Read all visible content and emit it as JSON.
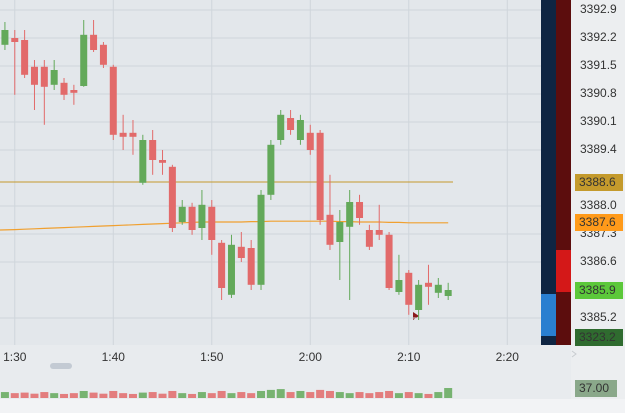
{
  "chart_data": {
    "type": "candlestick",
    "categories": [
      null,
      "1:30",
      null,
      null,
      null,
      null,
      null,
      null,
      null,
      null,
      null,
      "1:40",
      null,
      null,
      null,
      null,
      null,
      null,
      null,
      null,
      null,
      "1:50",
      null,
      null,
      null,
      null,
      null,
      null,
      null,
      null,
      null,
      "2:00",
      null,
      null,
      null,
      null,
      null,
      null,
      null,
      null,
      null,
      "2:10",
      null,
      null,
      null,
      null,
      null,
      null,
      null,
      null,
      null,
      "2:20"
    ],
    "open": [
      3392.03,
      3392.2,
      3392.15,
      3391.48,
      3391.48,
      3391.03,
      3391.08,
      3390.9,
      3391.0,
      3392.28,
      3392.03,
      3391.48,
      3389.83,
      3389.83,
      3388.58,
      3389.65,
      3389.15,
      3388.98,
      3387.6,
      3387.98,
      3387.45,
      3387.98,
      3387.08,
      3385.78,
      3386.98,
      3386.95,
      3386.03,
      3388.28,
      3389.65,
      3390.2,
      3389.65,
      3389.83,
      3389.83,
      3387.78,
      3387.1,
      3387.48,
      3388.1,
      3387.4,
      3387.4,
      3387.28,
      3385.85,
      3386.33,
      3385.4,
      3386.08,
      3385.83,
      3385.75,
      null,
      null,
      null,
      null,
      null,
      null
    ],
    "high": [
      3392.6,
      3392.4,
      3392.4,
      3391.65,
      3391.65,
      3391.65,
      3391.2,
      3391.03,
      3392.65,
      3392.65,
      3392.1,
      3391.53,
      3390.28,
      3390.15,
      3389.78,
      3389.9,
      3389.4,
      3389.03,
      3388.15,
      3388.08,
      3388.4,
      3388.15,
      3387.15,
      3387.28,
      3387.35,
      3387.15,
      3388.4,
      3389.65,
      3390.4,
      3390.4,
      3390.28,
      3390.03,
      3389.9,
      3388.78,
      3387.9,
      3388.4,
      3388.28,
      3387.53,
      3388.03,
      3387.35,
      3386.78,
      3386.4,
      3386.15,
      3386.53,
      3386.2,
      3386.08,
      null,
      null,
      null,
      null,
      null,
      null
    ],
    "low": [
      3391.9,
      3390.78,
      3391.2,
      3390.4,
      3390.03,
      3390.9,
      3390.65,
      3390.53,
      3390.98,
      3391.85,
      3391.45,
      3389.65,
      3389.4,
      3389.28,
      3388.53,
      3388.78,
      3388.78,
      3387.35,
      3387.53,
      3387.28,
      3387.15,
      3386.78,
      3385.65,
      3385.7,
      3386.6,
      3385.9,
      3385.9,
      3388.15,
      3389.53,
      3389.78,
      3389.53,
      3389.28,
      3387.53,
      3386.9,
      3386.15,
      3385.65,
      3387.53,
      3386.9,
      3387.15,
      3385.9,
      3385.78,
      3385.28,
      3385.15,
      3385.53,
      3385.7,
      3385.65,
      null,
      null,
      null,
      null,
      null,
      null
    ],
    "close": [
      3392.4,
      3392.1,
      3391.28,
      3391.03,
      3390.98,
      3391.4,
      3390.78,
      3390.83,
      3392.28,
      3391.9,
      3391.53,
      3389.78,
      3389.73,
      3389.73,
      3389.65,
      3389.15,
      3389.08,
      3387.45,
      3387.98,
      3387.4,
      3388.03,
      3387.15,
      3385.95,
      3387.03,
      3386.7,
      3386.03,
      3388.28,
      3389.53,
      3390.28,
      3389.9,
      3390.15,
      3389.4,
      3387.65,
      3387.03,
      3387.6,
      3388.1,
      3387.7,
      3386.98,
      3387.28,
      3385.95,
      3386.15,
      3385.53,
      3386.03,
      3385.98,
      3386.03,
      3385.9,
      null,
      null,
      null,
      null,
      null,
      null
    ],
    "moving_average": [
      3387.4,
      3387.41,
      3387.42,
      3387.43,
      3387.44,
      3387.45,
      3387.46,
      3387.47,
      3387.48,
      3387.49,
      3387.5,
      3387.51,
      3387.52,
      3387.53,
      3387.54,
      3387.55,
      3387.56,
      3387.57,
      3387.58,
      3387.59,
      3387.6,
      3387.6,
      3387.6,
      3387.6,
      3387.6,
      3387.61,
      3387.61,
      3387.62,
      3387.62,
      3387.62,
      3387.62,
      3387.62,
      3387.62,
      3387.62,
      3387.61,
      3387.61,
      3387.6,
      3387.6,
      3387.6,
      3387.59,
      3387.59,
      3387.58,
      3387.58,
      3387.58,
      3387.58,
      3387.58,
      null,
      null,
      null,
      null,
      null,
      null
    ],
    "volume": [
      22,
      18,
      20,
      16,
      22,
      18,
      15,
      18,
      26,
      20,
      16,
      26,
      18,
      15,
      20,
      22,
      16,
      26,
      18,
      15,
      22,
      18,
      26,
      18,
      22,
      18,
      26,
      30,
      33,
      22,
      26,
      22,
      30,
      26,
      22,
      18,
      22,
      18,
      22,
      26,
      18,
      22,
      18,
      15,
      22,
      37,
      null,
      null,
      null,
      null,
      null,
      null
    ],
    "volume_ylim": [
      0,
      100
    ],
    "up_color": "#63a95a",
    "down_color": "#e26a6a",
    "ma_color": "#f0a030",
    "ylim": [
      3384.525,
      3393.15
    ],
    "yticks": [
      3392.9,
      3392.2,
      3391.5,
      3390.8,
      3390.1,
      3389.4,
      {
        "value": 3388,
        "label": "3388.0"
      },
      3387.3,
      3386.6,
      3385.2
    ],
    "grid": true,
    "price_markers": [
      {
        "value": 3388.6,
        "color": "#c49a2c",
        "line": true
      },
      {
        "value": 3387.6,
        "color": "#ff9a1a",
        "line": false
      },
      {
        "value": 3385.9,
        "color": "#5cc83a",
        "line": false
      }
    ],
    "last_marker": {
      "value": 3323.2,
      "color": "#2f6b2f"
    },
    "volume_marker": {
      "value": 37,
      "label": "37.00",
      "color": "#8aa88a"
    }
  }
}
